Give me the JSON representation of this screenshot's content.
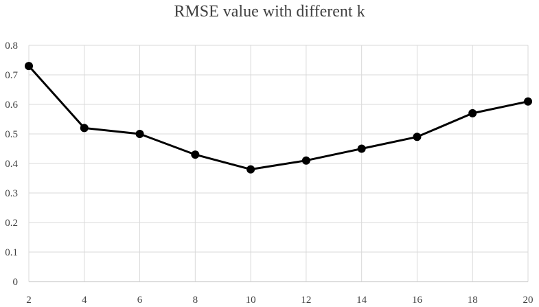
{
  "chart_data": {
    "type": "line",
    "title": "RMSE value with different k",
    "xlabel": "",
    "ylabel": "",
    "x": [
      2,
      4,
      6,
      8,
      10,
      12,
      14,
      16,
      18,
      20
    ],
    "series": [
      {
        "values": [
          0.73,
          0.52,
          0.5,
          0.43,
          0.38,
          0.41,
          0.45,
          0.49,
          0.57,
          0.61
        ]
      }
    ],
    "xlim": [
      2,
      20
    ],
    "ylim": [
      0,
      0.8
    ],
    "yticks": [
      "0",
      "0.1",
      "0.2",
      "0.3",
      "0.4",
      "0.5",
      "0.6",
      "0.7",
      "0.8"
    ],
    "xticks": [
      "2",
      "4",
      "6",
      "8",
      "10",
      "12",
      "14",
      "16",
      "18",
      "20"
    ],
    "grid": true,
    "legend": "none",
    "colors": {
      "line": "#000000",
      "marker": "#000000",
      "grid": "#d9d9d9",
      "axis": "#bfbfbf"
    }
  }
}
